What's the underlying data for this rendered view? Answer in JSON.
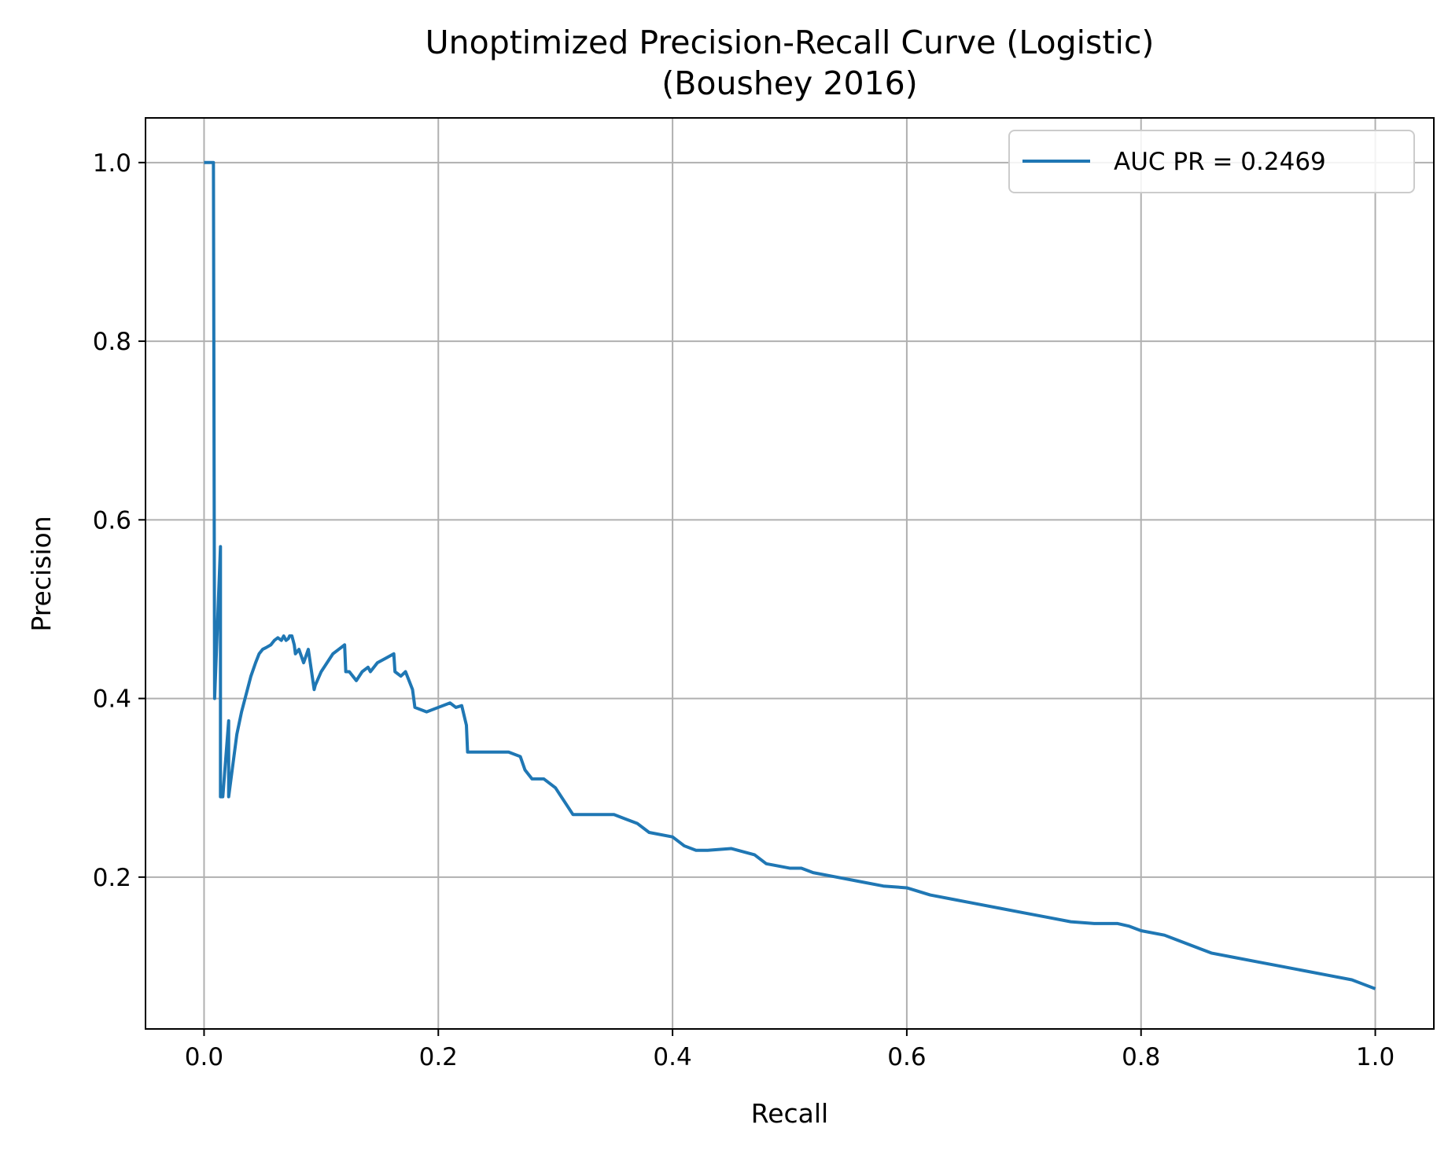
{
  "chart_data": {
    "type": "line",
    "title": "Unoptimized Precision-Recall Curve (Logistic)",
    "subtitle": "(Boushey 2016)",
    "xlabel": "Recall",
    "ylabel": "Precision",
    "xlim": [
      -0.05,
      1.05
    ],
    "ylim": [
      0.03,
      1.05
    ],
    "xticks": [
      "0.0",
      "0.2",
      "0.4",
      "0.6",
      "0.8",
      "1.0"
    ],
    "yticks": [
      "0.2",
      "0.4",
      "0.6",
      "0.8",
      "1.0"
    ],
    "grid": true,
    "legend_position": "top-right",
    "colors": {
      "series": "#1f77b4",
      "grid": "#b0b0b0",
      "axes": "#000000"
    },
    "series": [
      {
        "name": "AUC PR = 0.2469",
        "x": [
          0.0,
          0.008,
          0.008,
          0.009,
          0.014,
          0.014,
          0.016,
          0.021,
          0.021,
          0.023,
          0.028,
          0.032,
          0.035,
          0.04,
          0.044,
          0.047,
          0.05,
          0.053,
          0.057,
          0.06,
          0.063,
          0.066,
          0.068,
          0.07,
          0.072,
          0.073,
          0.075,
          0.077,
          0.078,
          0.081,
          0.085,
          0.089,
          0.094,
          0.095,
          0.1,
          0.105,
          0.11,
          0.115,
          0.12,
          0.121,
          0.124,
          0.13,
          0.135,
          0.14,
          0.142,
          0.148,
          0.155,
          0.162,
          0.163,
          0.168,
          0.172,
          0.175,
          0.178,
          0.18,
          0.19,
          0.2,
          0.21,
          0.215,
          0.22,
          0.224,
          0.225,
          0.23,
          0.24,
          0.25,
          0.26,
          0.27,
          0.274,
          0.28,
          0.29,
          0.3,
          0.31,
          0.315,
          0.33,
          0.35,
          0.36,
          0.37,
          0.38,
          0.4,
          0.41,
          0.42,
          0.43,
          0.45,
          0.47,
          0.48,
          0.5,
          0.51,
          0.52,
          0.54,
          0.56,
          0.58,
          0.6,
          0.62,
          0.64,
          0.66,
          0.68,
          0.7,
          0.72,
          0.74,
          0.76,
          0.78,
          0.79,
          0.8,
          0.82,
          0.83,
          0.85,
          0.86,
          0.88,
          0.9,
          0.92,
          0.94,
          0.96,
          0.98,
          0.99,
          1.0
        ],
        "y": [
          1.0,
          1.0,
          1.0,
          0.4,
          0.57,
          0.29,
          0.29,
          0.375,
          0.29,
          0.31,
          0.36,
          0.385,
          0.4,
          0.425,
          0.44,
          0.45,
          0.455,
          0.457,
          0.46,
          0.465,
          0.468,
          0.465,
          0.47,
          0.465,
          0.467,
          0.47,
          0.47,
          0.46,
          0.45,
          0.455,
          0.44,
          0.455,
          0.41,
          0.415,
          0.43,
          0.44,
          0.45,
          0.455,
          0.46,
          0.43,
          0.43,
          0.42,
          0.43,
          0.435,
          0.43,
          0.44,
          0.445,
          0.45,
          0.43,
          0.425,
          0.43,
          0.42,
          0.41,
          0.39,
          0.385,
          0.39,
          0.395,
          0.39,
          0.392,
          0.37,
          0.34,
          0.34,
          0.34,
          0.34,
          0.34,
          0.335,
          0.32,
          0.31,
          0.31,
          0.3,
          0.28,
          0.27,
          0.27,
          0.27,
          0.265,
          0.26,
          0.25,
          0.245,
          0.235,
          0.23,
          0.23,
          0.232,
          0.225,
          0.215,
          0.21,
          0.21,
          0.205,
          0.2,
          0.195,
          0.19,
          0.188,
          0.18,
          0.175,
          0.17,
          0.165,
          0.16,
          0.155,
          0.15,
          0.148,
          0.148,
          0.145,
          0.14,
          0.135,
          0.13,
          0.12,
          0.115,
          0.11,
          0.105,
          0.1,
          0.095,
          0.09,
          0.085,
          0.08,
          0.075
        ]
      }
    ]
  }
}
